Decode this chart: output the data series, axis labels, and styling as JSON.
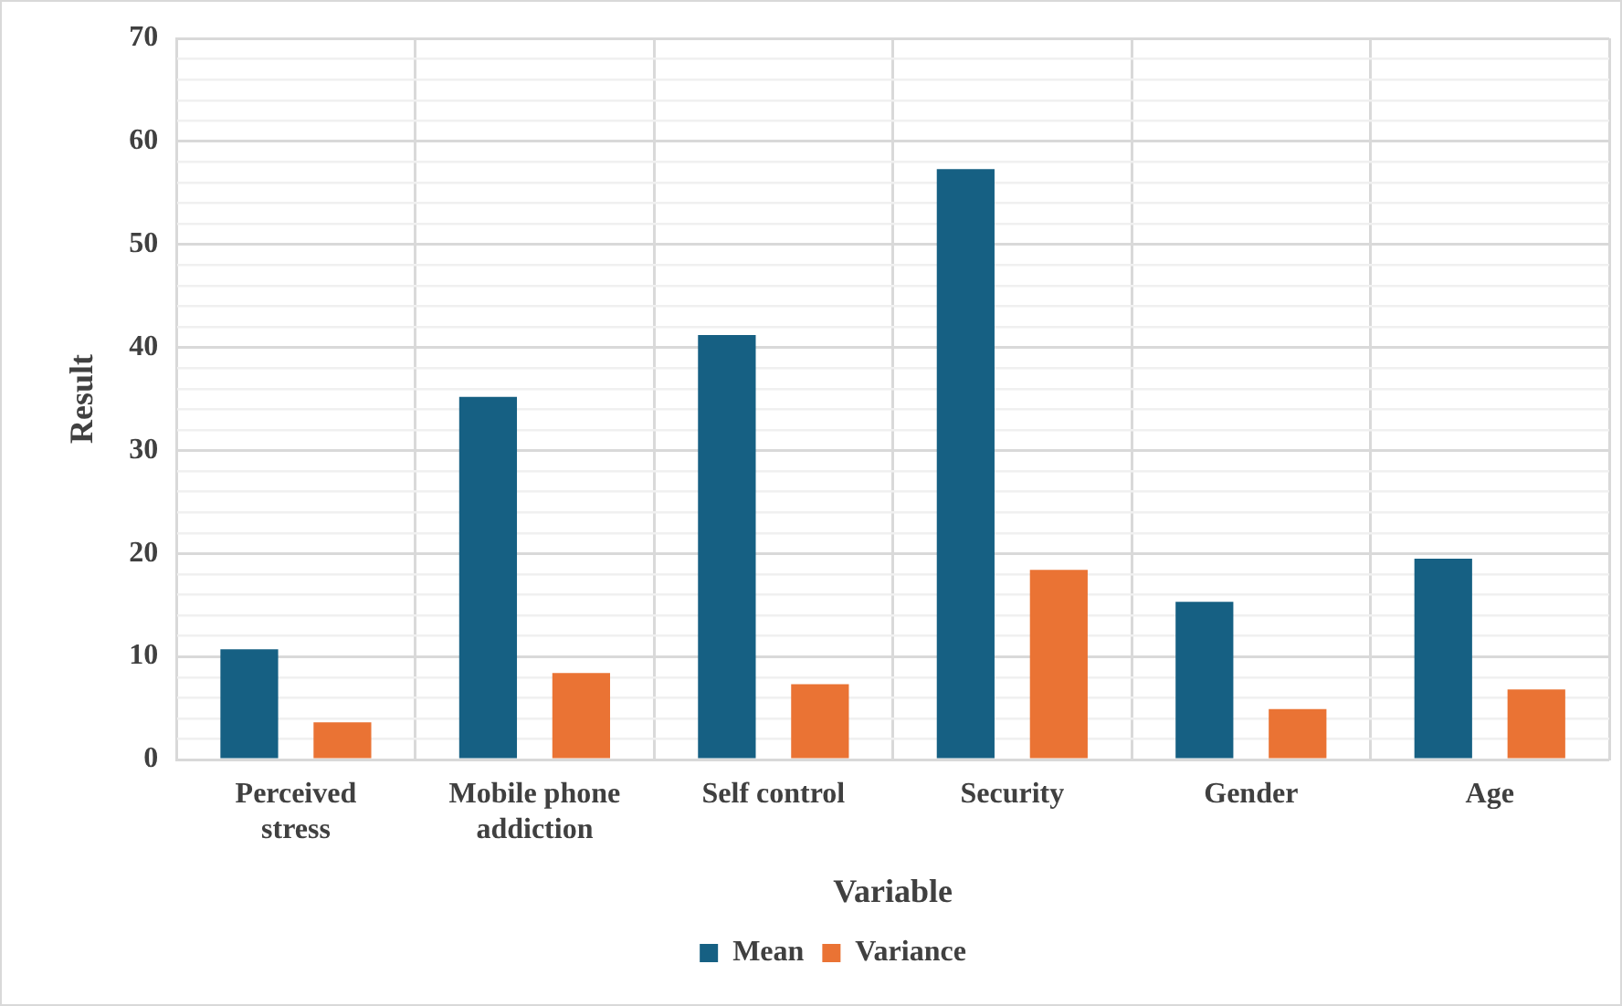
{
  "chart_data": {
    "type": "bar",
    "categories": [
      "Perceived stress",
      "Mobile phone addiction",
      "Self control",
      "Security",
      "Gender",
      "Age"
    ],
    "xlabel": "Variable",
    "ylabel": "Result",
    "series": [
      {
        "name": "Mean",
        "color": "#166083",
        "values": [
          10.7,
          35.2,
          41.2,
          57.3,
          15.3,
          19.5
        ]
      },
      {
        "name": "Variance",
        "color": "#ea7334",
        "values": [
          3.6,
          8.4,
          7.3,
          18.4,
          4.9,
          6.8
        ]
      }
    ],
    "ylim": [
      0,
      70
    ],
    "yticks": [
      0,
      {
        "value": 2,
        "label": null
      },
      {
        "value": 4,
        "label": null
      },
      {
        "value": 6,
        "label": null
      },
      {
        "value": 8,
        "label": null
      },
      10,
      {
        "value": 12,
        "label": null
      },
      {
        "value": 14,
        "label": null
      },
      {
        "value": 16,
        "label": null
      },
      {
        "value": 18,
        "label": null
      },
      20,
      {
        "value": 22,
        "label": null
      },
      {
        "value": 24,
        "label": null
      },
      {
        "value": 26,
        "label": null
      },
      {
        "value": 28,
        "label": null
      },
      30,
      {
        "value": 32,
        "label": null
      },
      {
        "value": 34,
        "label": null
      },
      {
        "value": 36,
        "label": null
      },
      {
        "value": 38,
        "label": null
      },
      40,
      {
        "value": 42,
        "label": null
      },
      {
        "value": 44,
        "label": null
      },
      {
        "value": 46,
        "label": null
      },
      {
        "value": 48,
        "label": null
      },
      50,
      {
        "value": 52,
        "label": null
      },
      {
        "value": 54,
        "label": null
      },
      {
        "value": 56,
        "label": null
      },
      {
        "value": 58,
        "label": null
      },
      60,
      {
        "value": 62,
        "label": null
      },
      {
        "value": 64,
        "label": null
      },
      {
        "value": 66,
        "label": null
      },
      {
        "value": 68,
        "label": null
      },
      70
    ],
    "grid": true,
    "legend": "bottom"
  }
}
